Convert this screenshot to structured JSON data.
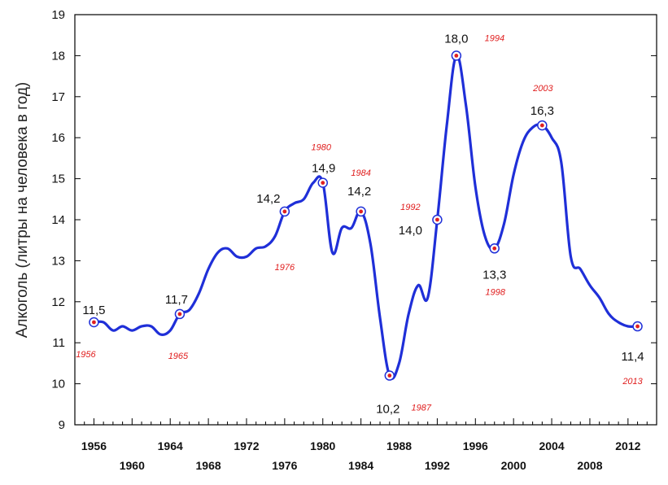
{
  "chart_data": {
    "type": "line",
    "title": "",
    "xlabel": "",
    "ylabel": "Алкоголь (литры на человека в год)",
    "xlim": [
      1954,
      2015
    ],
    "ylim": [
      9,
      19
    ],
    "y_ticks": [
      "9",
      "10",
      "11",
      "12",
      "13",
      "14",
      "15",
      "16",
      "17",
      "18",
      "19"
    ],
    "x_ticks_top": [
      "1956",
      "1964",
      "1972",
      "1980",
      "1988",
      "1996",
      "2004",
      "2012"
    ],
    "x_ticks_bottom": [
      "1960",
      "1968",
      "1976",
      "1984",
      "1992",
      "2000",
      "2008"
    ],
    "line_color": "#1f2fd8",
    "marker_color": "#e02020",
    "label_color": "#e02020",
    "series": [
      {
        "name": "Алкоголь",
        "x": [
          1956,
          1957,
          1958,
          1959,
          1960,
          1961,
          1962,
          1963,
          1964,
          1965,
          1966,
          1967,
          1968,
          1969,
          1970,
          1971,
          1972,
          1973,
          1974,
          1975,
          1976,
          1977,
          1978,
          1979,
          1980,
          1981,
          1982,
          1983,
          1984,
          1985,
          1986,
          1987,
          1988,
          1989,
          1990,
          1991,
          1992,
          1993,
          1994,
          1995,
          1996,
          1997,
          1998,
          1999,
          2000,
          2001,
          2002,
          2003,
          2004,
          2005,
          2006,
          2007,
          2008,
          2009,
          2010,
          2011,
          2012,
          2013
        ],
        "y": [
          11.5,
          11.5,
          11.3,
          11.4,
          11.3,
          11.4,
          11.4,
          11.2,
          11.3,
          11.7,
          11.8,
          12.2,
          12.8,
          13.2,
          13.3,
          13.1,
          13.1,
          13.3,
          13.35,
          13.6,
          14.2,
          14.4,
          14.5,
          14.9,
          14.9,
          13.2,
          13.8,
          13.8,
          14.2,
          13.4,
          11.6,
          10.2,
          10.5,
          11.7,
          12.4,
          12.1,
          14.0,
          16.3,
          18.0,
          16.8,
          14.8,
          13.6,
          13.3,
          13.9,
          15.1,
          15.9,
          16.25,
          16.3,
          16.0,
          15.4,
          13.1,
          12.8,
          12.4,
          12.1,
          11.7,
          11.5,
          11.4,
          11.4
        ]
      }
    ],
    "highlighted_points": [
      {
        "year": 1956,
        "value": 11.5,
        "value_label": "11,5",
        "year_label": "1956"
      },
      {
        "year": 1965,
        "value": 11.7,
        "value_label": "11,7",
        "year_label": "1965"
      },
      {
        "year": 1976,
        "value": 14.2,
        "value_label": "14,2",
        "year_label": "1976"
      },
      {
        "year": 1980,
        "value": 14.9,
        "value_label": "14,9",
        "year_label": "1980"
      },
      {
        "year": 1984,
        "value": 14.2,
        "value_label": "14,2",
        "year_label": "1984"
      },
      {
        "year": 1987,
        "value": 10.2,
        "value_label": "10,2",
        "year_label": "1987"
      },
      {
        "year": 1992,
        "value": 14.0,
        "value_label": "14,0",
        "year_label": "1992"
      },
      {
        "year": 1994,
        "value": 18.0,
        "value_label": "18,0",
        "year_label": "1994"
      },
      {
        "year": 1998,
        "value": 13.3,
        "value_label": "13,3",
        "year_label": "1998"
      },
      {
        "year": 2003,
        "value": 16.3,
        "value_label": "16,3",
        "year_label": "2003"
      },
      {
        "year": 2013,
        "value": 11.4,
        "value_label": "11,4",
        "year_label": "2013"
      }
    ]
  }
}
